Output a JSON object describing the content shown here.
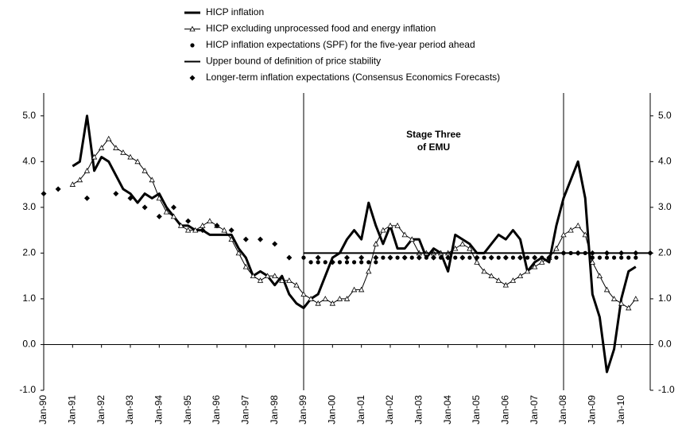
{
  "chart_data": {
    "type": "line",
    "annotation": [
      "Stage Three",
      "of EMU"
    ],
    "vlines": [
      1999,
      2008
    ],
    "xlim": [
      1990,
      2011
    ],
    "ylim": [
      -1,
      5.5
    ],
    "xticks": [
      {
        "value": 1990,
        "label": "Jan-90"
      },
      {
        "value": 1991,
        "label": "Jan-91"
      },
      {
        "value": 1992,
        "label": "Jan-92"
      },
      {
        "value": 1993,
        "label": "Jan-93"
      },
      {
        "value": 1994,
        "label": "Jan-94"
      },
      {
        "value": 1995,
        "label": "Jan-95"
      },
      {
        "value": 1996,
        "label": "Jan-96"
      },
      {
        "value": 1997,
        "label": "Jan-97"
      },
      {
        "value": 1998,
        "label": "Jan-98"
      },
      {
        "value": 1999,
        "label": "Jan-99"
      },
      {
        "value": 2000,
        "label": "Jan-00"
      },
      {
        "value": 2001,
        "label": "Jan-01"
      },
      {
        "value": 2002,
        "label": "Jan-02"
      },
      {
        "value": 2003,
        "label": "Jan-03"
      },
      {
        "value": 2004,
        "label": "Jan-04"
      },
      {
        "value": 2005,
        "label": "Jan-05"
      },
      {
        "value": 2006,
        "label": "Jan-06"
      },
      {
        "value": 2007,
        "label": "Jan-07"
      },
      {
        "value": 2008,
        "label": "Jan-08"
      },
      {
        "value": 2009,
        "label": "Jan-09"
      },
      {
        "value": 2010,
        "label": "Jan-10"
      }
    ],
    "yticks": [
      {
        "value": -1,
        "label": "-1.0"
      },
      {
        "value": 0,
        "label": "0.0"
      },
      {
        "value": 1,
        "label": "1.0"
      },
      {
        "value": 2,
        "label": "2.0"
      },
      {
        "value": 3,
        "label": "3.0"
      },
      {
        "value": 4,
        "label": "4.0"
      },
      {
        "value": 5,
        "label": "5.0"
      }
    ],
    "series": [
      {
        "name": "HICP inflation",
        "color": "#000000",
        "style": "thick-line",
        "x": [
          1991,
          1991.25,
          1991.5,
          1991.75,
          1992,
          1992.25,
          1992.5,
          1992.75,
          1993,
          1993.25,
          1993.5,
          1993.75,
          1994,
          1994.25,
          1994.5,
          1994.75,
          1995,
          1995.25,
          1995.5,
          1995.75,
          1996,
          1996.25,
          1996.5,
          1996.75,
          1997,
          1997.25,
          1997.5,
          1997.75,
          1998,
          1998.25,
          1998.5,
          1998.75,
          1999,
          1999.25,
          1999.5,
          1999.75,
          2000,
          2000.25,
          2000.5,
          2000.75,
          2001,
          2001.25,
          2001.5,
          2001.75,
          2002,
          2002.25,
          2002.5,
          2002.75,
          2003,
          2003.25,
          2003.5,
          2003.75,
          2004,
          2004.25,
          2004.5,
          2004.75,
          2005,
          2005.25,
          2005.5,
          2005.75,
          2006,
          2006.25,
          2006.5,
          2006.75,
          2007,
          2007.25,
          2007.5,
          2007.75,
          2008,
          2008.25,
          2008.5,
          2008.75,
          2009,
          2009.25,
          2009.5,
          2009.75,
          2010,
          2010.25,
          2010.5
        ],
        "values": [
          3.9,
          4.0,
          5.0,
          3.8,
          4.1,
          4.0,
          3.7,
          3.4,
          3.3,
          3.1,
          3.3,
          3.2,
          3.3,
          3.0,
          2.8,
          2.6,
          2.6,
          2.5,
          2.5,
          2.4,
          2.4,
          2.4,
          2.4,
          2.1,
          1.9,
          1.5,
          1.6,
          1.5,
          1.3,
          1.5,
          1.1,
          0.9,
          0.8,
          1.0,
          1.1,
          1.5,
          1.9,
          2.0,
          2.3,
          2.5,
          2.3,
          3.1,
          2.6,
          2.2,
          2.6,
          2.1,
          2.1,
          2.3,
          2.3,
          1.9,
          2.1,
          2.0,
          1.6,
          2.4,
          2.3,
          2.2,
          2.0,
          2.0,
          2.2,
          2.4,
          2.3,
          2.5,
          2.3,
          1.6,
          1.8,
          1.9,
          1.8,
          2.6,
          3.2,
          3.6,
          4.0,
          3.2,
          1.1,
          0.6,
          -0.6,
          -0.1,
          1.0,
          1.6,
          1.7
        ]
      },
      {
        "name": "HICP excluding unprocessed food and energy inflation",
        "color": "#000000",
        "style": "triangle-line",
        "x": [
          1991,
          1991.25,
          1991.5,
          1991.75,
          1992,
          1992.25,
          1992.5,
          1992.75,
          1993,
          1993.25,
          1993.5,
          1993.75,
          1994,
          1994.25,
          1994.5,
          1994.75,
          1995,
          1995.25,
          1995.5,
          1995.75,
          1996,
          1996.25,
          1996.5,
          1996.75,
          1997,
          1997.25,
          1997.5,
          1997.75,
          1998,
          1998.25,
          1998.5,
          1998.75,
          1999,
          1999.25,
          1999.5,
          1999.75,
          2000,
          2000.25,
          2000.5,
          2000.75,
          2001,
          2001.25,
          2001.5,
          2001.75,
          2002,
          2002.25,
          2002.5,
          2002.75,
          2003,
          2003.25,
          2003.5,
          2003.75,
          2004,
          2004.25,
          2004.5,
          2004.75,
          2005,
          2005.25,
          2005.5,
          2005.75,
          2006,
          2006.25,
          2006.5,
          2006.75,
          2007,
          2007.25,
          2007.5,
          2007.75,
          2008,
          2008.25,
          2008.5,
          2008.75,
          2009,
          2009.25,
          2009.5,
          2009.75,
          2010,
          2010.25,
          2010.5
        ],
        "values": [
          3.5,
          3.6,
          3.8,
          4.1,
          4.3,
          4.5,
          4.3,
          4.2,
          4.1,
          4.0,
          3.8,
          3.6,
          3.2,
          2.9,
          2.8,
          2.6,
          2.5,
          2.5,
          2.6,
          2.7,
          2.6,
          2.5,
          2.3,
          2.0,
          1.7,
          1.5,
          1.4,
          1.5,
          1.5,
          1.4,
          1.4,
          1.3,
          1.1,
          1.0,
          0.9,
          1.0,
          0.9,
          1.0,
          1.0,
          1.2,
          1.2,
          1.6,
          2.2,
          2.5,
          2.6,
          2.6,
          2.4,
          2.3,
          2.0,
          2.0,
          2.0,
          2.0,
          2.0,
          2.1,
          2.2,
          2.1,
          1.8,
          1.6,
          1.5,
          1.4,
          1.3,
          1.4,
          1.5,
          1.6,
          1.7,
          1.8,
          1.9,
          2.1,
          2.4,
          2.5,
          2.6,
          2.4,
          1.8,
          1.5,
          1.2,
          1.0,
          0.9,
          0.8,
          1.0
        ]
      },
      {
        "name": "HICP inflation expectations (SPF) for the five-year period ahead",
        "color": "#000000",
        "style": "circles",
        "x": [
          1999,
          1999.25,
          1999.5,
          1999.75,
          2000,
          2000.25,
          2000.5,
          2000.75,
          2001,
          2001.25,
          2001.5,
          2001.75,
          2002,
          2002.25,
          2002.5,
          2002.75,
          2003,
          2003.25,
          2003.5,
          2003.75,
          2004,
          2004.25,
          2004.5,
          2004.75,
          2005,
          2005.25,
          2005.5,
          2005.75,
          2006,
          2006.25,
          2006.5,
          2006.75,
          2007,
          2007.25,
          2007.5,
          2007.75,
          2008,
          2008.25,
          2008.5,
          2008.75,
          2009,
          2009.25,
          2009.5,
          2009.75,
          2010,
          2010.25,
          2010.5
        ],
        "values": [
          1.9,
          1.8,
          1.8,
          1.8,
          1.8,
          1.8,
          1.8,
          1.8,
          1.8,
          1.8,
          1.8,
          1.9,
          1.9,
          1.9,
          1.9,
          1.9,
          1.9,
          1.9,
          1.9,
          1.9,
          1.9,
          1.9,
          1.9,
          1.9,
          1.9,
          1.9,
          1.9,
          1.9,
          1.9,
          1.9,
          1.9,
          1.9,
          1.9,
          1.9,
          1.9,
          1.9,
          2.0,
          2.0,
          2.0,
          2.0,
          1.9,
          1.9,
          1.9,
          1.9,
          1.9,
          1.9,
          1.9
        ]
      },
      {
        "name": "Upper bound of definition of price stability",
        "color": "#000000",
        "style": "line",
        "x": [
          1999,
          2011
        ],
        "values": [
          2.0,
          2.0
        ]
      },
      {
        "name": "Longer-term inflation expectations (Consensus Economics Forecasts)",
        "color": "#000000",
        "style": "diamonds",
        "x": [
          1990,
          1990.5,
          1991.5,
          1992.5,
          1993,
          1993.5,
          1994,
          1994.5,
          1995,
          1995.5,
          1996,
          1996.5,
          1997,
          1997.5,
          1998,
          1998.5,
          1999.5,
          2000,
          2000.5,
          2001,
          2001.5,
          2002,
          2002.5,
          2003,
          2003.5,
          2004,
          2004.5,
          2005,
          2005.5,
          2006,
          2006.5,
          2007,
          2007.5,
          2008,
          2008.5,
          2009,
          2009.5,
          2010,
          2010.5,
          2011
        ],
        "values": [
          3.3,
          3.4,
          3.2,
          3.3,
          3.2,
          3.0,
          2.8,
          3.0,
          2.7,
          2.5,
          2.6,
          2.5,
          2.3,
          2.3,
          2.2,
          1.9,
          1.9,
          1.8,
          1.9,
          1.9,
          1.9,
          1.9,
          1.9,
          1.9,
          1.9,
          1.9,
          1.9,
          1.9,
          1.9,
          1.9,
          1.9,
          1.9,
          1.9,
          2.0,
          2.0,
          2.0,
          2.0,
          2.0,
          2.0,
          2.0
        ]
      }
    ]
  }
}
